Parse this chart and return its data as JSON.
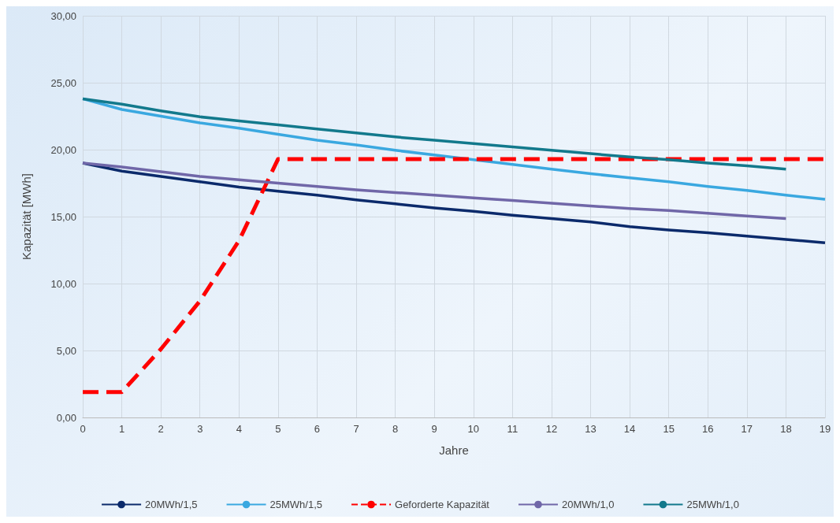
{
  "chart_data": {
    "type": "line",
    "xlabel": "Jahre",
    "ylabel": "Kapazität [MWh]",
    "x": [
      0,
      1,
      2,
      3,
      4,
      5,
      6,
      7,
      8,
      9,
      10,
      11,
      12,
      13,
      14,
      15,
      16,
      17,
      18,
      19
    ],
    "xlim": [
      0,
      19
    ],
    "xticks": [
      0,
      1,
      2,
      3,
      4,
      5,
      6,
      7,
      8,
      9,
      10,
      11,
      12,
      13,
      14,
      15,
      16,
      17,
      18,
      19
    ],
    "ylim": [
      0,
      30
    ],
    "yticks": [
      {
        "value": 0,
        "label": "0,00"
      },
      {
        "value": 5,
        "label": "5,00"
      },
      {
        "value": 10,
        "label": "10,00"
      },
      {
        "value": 15,
        "label": "15,00"
      },
      {
        "value": 20,
        "label": "20,00"
      },
      {
        "value": 25,
        "label": "25,00"
      },
      {
        "value": 30,
        "label": "30,00"
      }
    ],
    "grid": true,
    "legend": "bottom",
    "marker": "none",
    "series": [
      {
        "name": "20MWh/1,5",
        "color": "#0b2a6b",
        "line_style": "solid",
        "values": [
          19.0,
          18.4,
          18.0,
          17.6,
          17.2,
          16.9,
          16.6,
          16.25,
          15.95,
          15.65,
          15.4,
          15.1,
          14.85,
          14.6,
          14.25,
          14.0,
          13.8,
          13.55,
          13.3,
          13.05
        ]
      },
      {
        "name": "25MWh/1,5",
        "color": "#3aa8e0",
        "line_style": "solid",
        "values": [
          23.8,
          23.0,
          22.5,
          22.0,
          21.6,
          21.15,
          20.7,
          20.35,
          19.95,
          19.6,
          19.25,
          18.9,
          18.55,
          18.2,
          17.9,
          17.6,
          17.25,
          16.95,
          16.6,
          16.3
        ]
      },
      {
        "name": "Geforderte Kapazität",
        "color": "#ff0000",
        "line_style": "dashed",
        "values": [
          1.9,
          1.9,
          5.1,
          8.7,
          13.2,
          19.3,
          19.3,
          19.3,
          19.3,
          19.3,
          19.3,
          19.3,
          19.3,
          19.3,
          19.3,
          19.3,
          19.3,
          19.3,
          19.3,
          19.3
        ]
      },
      {
        "name": "20MWh/1,0",
        "color": "#7067a8",
        "line_style": "solid",
        "values": [
          19.0,
          18.7,
          18.35,
          18.0,
          17.75,
          17.5,
          17.25,
          17.0,
          16.8,
          16.6,
          16.4,
          16.2,
          16.0,
          15.8,
          15.6,
          15.45,
          15.25,
          15.05,
          14.85,
          null
        ]
      },
      {
        "name": "25MWh/1,0",
        "color": "#12798c",
        "line_style": "solid",
        "values": [
          23.8,
          23.4,
          22.9,
          22.45,
          22.15,
          21.85,
          21.55,
          21.25,
          20.95,
          20.7,
          20.45,
          20.2,
          19.95,
          19.7,
          19.45,
          19.25,
          19.0,
          18.8,
          18.55,
          null
        ]
      }
    ]
  }
}
